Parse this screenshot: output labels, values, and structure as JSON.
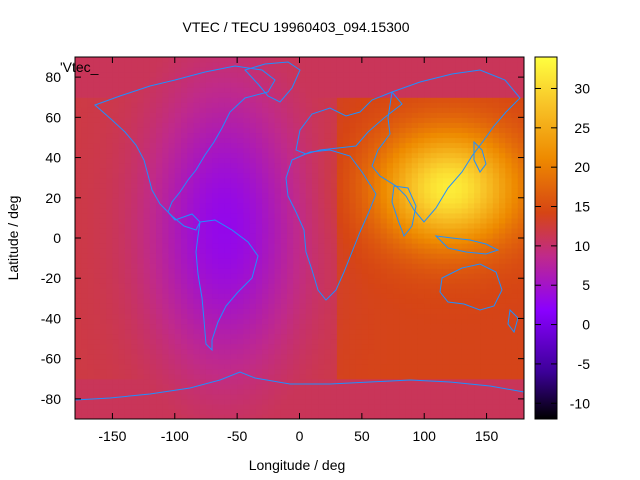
{
  "chart_data": {
    "type": "heatmap",
    "title": "VTEC / TECU 19960403_094.15300",
    "xlabel": "Longitude / deg",
    "ylabel": "Latitude / deg",
    "xlim": [
      -180,
      180
    ],
    "ylim": [
      -90,
      90
    ],
    "x_ticks": [
      -150,
      -100,
      -50,
      0,
      50,
      100,
      150
    ],
    "y_ticks": [
      -80,
      -60,
      -40,
      -20,
      0,
      20,
      40,
      60,
      80
    ],
    "legend_label": "'Vtec_",
    "colorbar": {
      "range": [
        -12,
        34
      ],
      "ticks": [
        -10,
        -5,
        0,
        5,
        10,
        15,
        20,
        25,
        30
      ],
      "colormap": [
        "#000000",
        "#3c0098",
        "#8a00ff",
        "#c02a8a",
        "#d64514",
        "#ee8a00",
        "#f8c428",
        "#ffff40"
      ]
    },
    "grid": false,
    "field_summary": {
      "description_values_tecu": {
        "day_side_peak": 30,
        "night_side_trough": 3,
        "background": 12
      }
    },
    "coastline_color": "#1f8fff"
  }
}
